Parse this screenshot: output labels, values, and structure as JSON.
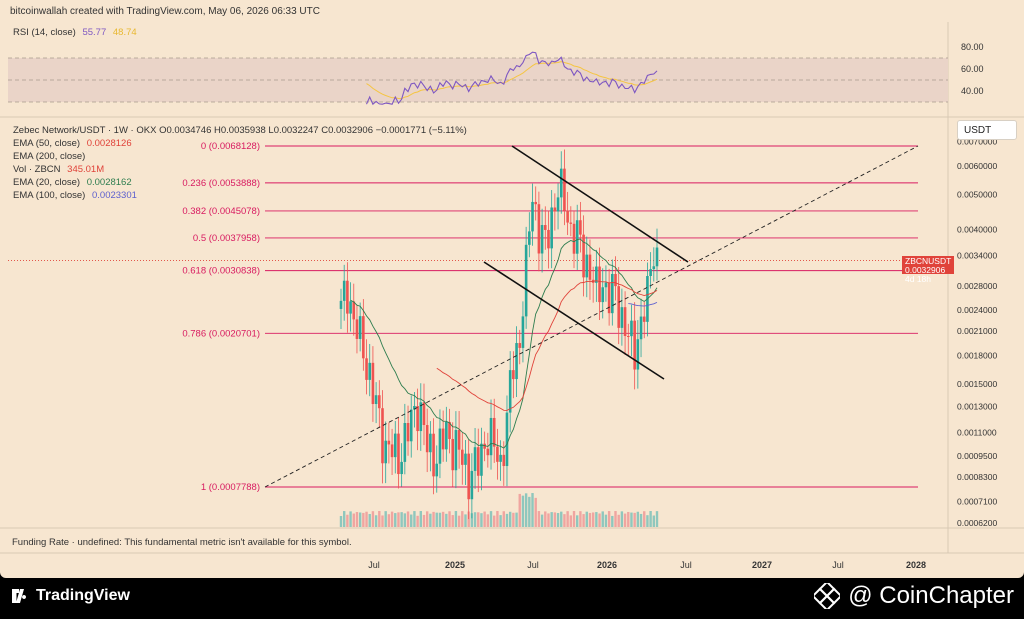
{
  "header": {
    "attribution": "bitcoinwallah created with TradingView.com, May 06, 2026 06:33 UTC"
  },
  "rsi_pane": {
    "label": "RSI (14, close)",
    "value": "55.77",
    "ma_value": "48.74",
    "ticks": [
      "80.00",
      "60.00",
      "40.00"
    ],
    "line_color": "#7e57c2",
    "ma_color": "#f5c542"
  },
  "main_pane": {
    "symbol_line": "Zebec Network/USDT · 1W · OKX",
    "ohlc": "O0.0034746 H0.0035938 L0.0032247 C0.0032906 −0.0001771 (−5.11%)",
    "legend": [
      {
        "label": "EMA (50, close)",
        "value": "0.0028126",
        "color": "#e0433a"
      },
      {
        "label": "EMA (200, close)",
        "value": "",
        "color": "#333333"
      },
      {
        "label": "Vol · ZBCN",
        "value": "345.01M",
        "color": "#e0433a"
      },
      {
        "label": "EMA (20, close)",
        "value": "0.0028162",
        "color": "#2e7d4f"
      },
      {
        "label": "EMA (100, close)",
        "value": "0.0023301",
        "color": "#5e60ce"
      }
    ],
    "currency": "USDT",
    "price_tag_symbol": "ZBCNUSDT",
    "price_tag_value": "0.0032906",
    "price_tag_countdown": "4d 18h",
    "funding_note": "Funding Rate · undefined: This fundamental metric isn't available for this symbol."
  },
  "chart_data": {
    "type": "candlestick",
    "y_scale": "log",
    "ylim": [
      0.00058,
      0.0073
    ],
    "y_ticks": [
      "0.0070000",
      "0.0060000",
      "0.0050000",
      "0.0040000",
      "0.0034000",
      "0.0028000",
      "0.0024000",
      "0.0021000",
      "0.0018000",
      "0.0015000",
      "0.0013000",
      "0.0011000",
      "0.0009500",
      "0.0008300",
      "0.0007100",
      "0.0006200"
    ],
    "x_ticks": [
      "Jul",
      "2025",
      "Jul",
      "2026",
      "Jul",
      "2027",
      "Jul",
      "2028"
    ],
    "fib_levels": [
      {
        "ratio": "0",
        "price": 0.0068128,
        "label": "0 (0.0068128)"
      },
      {
        "ratio": "0.236",
        "price": 0.0053888,
        "label": "0.236 (0.0053888)"
      },
      {
        "ratio": "0.382",
        "price": 0.0045078,
        "label": "0.382 (0.0045078)"
      },
      {
        "ratio": "0.5",
        "price": 0.0037958,
        "label": "0.5 (0.0037958)"
      },
      {
        "ratio": "0.618",
        "price": 0.0030838,
        "label": "0.618 (0.0030838)"
      },
      {
        "ratio": "0.786",
        "price": 0.0020701,
        "label": "0.786 (0.0020701)"
      },
      {
        "ratio": "1",
        "price": 0.0007788,
        "label": "1 (0.0007788)"
      }
    ],
    "last_price": 0.0032906,
    "colors": {
      "up": "#26a69a",
      "down": "#ef5350",
      "fib": "#d81b60"
    }
  }
}
